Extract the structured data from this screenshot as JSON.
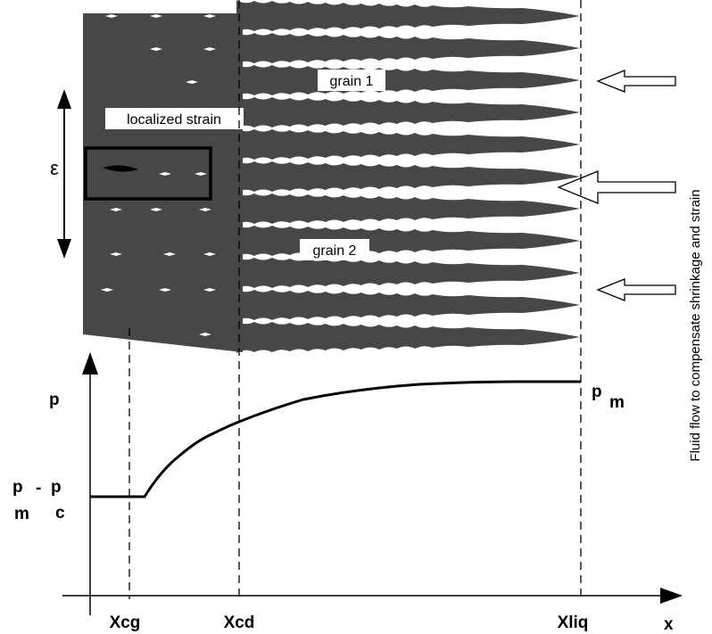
{
  "figure": {
    "labels": {
      "grain_1": "grain 1",
      "grain_2": "grain 2",
      "localized_strain": "localized strain",
      "strain_symbol": "ε",
      "fluid_flow": "Fluid flow to compensate shrinkage and strain"
    },
    "axes": {
      "y_label": "p",
      "x_label": "x",
      "p_m": {
        "p": "p",
        "sub": "m"
      },
      "p_m_minus_p_c": {
        "p1": "p",
        "sub1": "m",
        "minus": "-",
        "p2": "p",
        "sub2": "c"
      }
    },
    "x_markers": [
      "Xcg",
      "Xcd",
      "Xliq"
    ]
  }
}
